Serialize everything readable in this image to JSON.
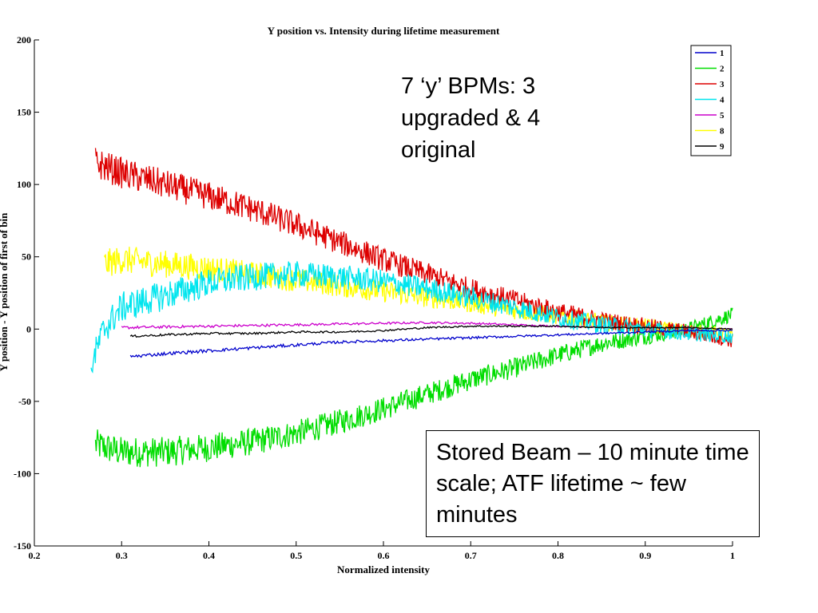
{
  "chart_data": {
    "type": "line",
    "title": "Y position vs. Intensity during lifetime measurement",
    "xlabel": "Normalized intensity",
    "ylabel": "Y position - Y position of first of bin",
    "xlim": [
      0.2,
      1.0
    ],
    "ylim": [
      -150,
      200
    ],
    "xticks": [
      "0.2",
      "0.3",
      "0.4",
      "0.5",
      "0.6",
      "0.7",
      "0.8",
      "0.9",
      "1"
    ],
    "yticks": [
      "200",
      "150",
      "100",
      "50",
      "0",
      "-50",
      "-100",
      "-150"
    ],
    "grid": false,
    "legend_position": "top-right",
    "series": [
      {
        "name": "1",
        "color": "#0000cc",
        "noise": 1.2,
        "x": [
          0.31,
          0.35,
          0.4,
          0.45,
          0.5,
          0.55,
          0.6,
          0.65,
          0.7,
          0.75,
          0.8,
          0.85,
          0.9,
          0.95,
          1.0
        ],
        "y": [
          -19,
          -17,
          -15,
          -13,
          -11,
          -9,
          -8,
          -7,
          -6,
          -5,
          -4,
          -3,
          -2,
          -1,
          -1
        ]
      },
      {
        "name": "2",
        "color": "#00dd00",
        "noise": 11,
        "x": [
          0.27,
          0.3,
          0.35,
          0.4,
          0.45,
          0.5,
          0.55,
          0.6,
          0.65,
          0.7,
          0.75,
          0.8,
          0.85,
          0.9,
          0.95,
          1.0
        ],
        "y": [
          -80,
          -85,
          -85,
          -82,
          -78,
          -72,
          -64,
          -55,
          -45,
          -35,
          -27,
          -18,
          -10,
          -5,
          0,
          10
        ]
      },
      {
        "name": "3",
        "color": "#dd0000",
        "noise": 11,
        "x": [
          0.27,
          0.3,
          0.35,
          0.4,
          0.45,
          0.5,
          0.55,
          0.6,
          0.65,
          0.7,
          0.75,
          0.8,
          0.85,
          0.9,
          0.95,
          1.0
        ],
        "y": [
          115,
          108,
          100,
          92,
          83,
          72,
          60,
          48,
          38,
          28,
          20,
          12,
          6,
          2,
          -2,
          -8
        ]
      },
      {
        "name": "4",
        "color": "#00e5ee",
        "noise": 11,
        "x": [
          0.265,
          0.28,
          0.3,
          0.33,
          0.36,
          0.4,
          0.45,
          0.5,
          0.55,
          0.6,
          0.65,
          0.7,
          0.75,
          0.8,
          0.85,
          0.9,
          0.95,
          1.0
        ],
        "y": [
          -25,
          0,
          15,
          20,
          25,
          32,
          36,
          38,
          36,
          33,
          28,
          22,
          15,
          8,
          3,
          0,
          -3,
          -5
        ]
      },
      {
        "name": "5",
        "color": "#cc00cc",
        "noise": 1.0,
        "x": [
          0.3,
          0.35,
          0.4,
          0.45,
          0.5,
          0.55,
          0.6,
          0.65,
          0.7,
          0.75,
          0.8,
          0.85,
          0.9,
          0.95,
          1.0
        ],
        "y": [
          1,
          1.5,
          2,
          2.5,
          3,
          3.5,
          4,
          4.5,
          4,
          3,
          2,
          1.5,
          1,
          0.5,
          0
        ]
      },
      {
        "name": "8",
        "color": "#ffff00",
        "noise": 10,
        "x": [
          0.28,
          0.3,
          0.35,
          0.4,
          0.45,
          0.5,
          0.55,
          0.6,
          0.65,
          0.7,
          0.75,
          0.8,
          0.85,
          0.9,
          0.95,
          1.0
        ],
        "y": [
          45,
          48,
          45,
          42,
          38,
          34,
          30,
          26,
          22,
          18,
          13,
          9,
          5,
          2,
          -1,
          -4
        ]
      },
      {
        "name": "9",
        "color": "#000000",
        "noise": 0.8,
        "x": [
          0.31,
          0.35,
          0.4,
          0.45,
          0.5,
          0.55,
          0.6,
          0.65,
          0.7,
          0.75,
          0.8,
          0.85,
          0.9,
          0.95,
          1.0
        ],
        "y": [
          -5,
          -4,
          -3,
          -3,
          -2,
          -2,
          -1,
          1,
          2,
          2,
          2,
          1,
          1,
          1,
          0
        ]
      }
    ]
  },
  "annotations": {
    "bpm_note": "7 ‘y’ BPMs: 3 upgraded & 4 original",
    "beam_note": "Stored Beam – 10 minute time scale; ATF lifetime ~ few minutes"
  }
}
